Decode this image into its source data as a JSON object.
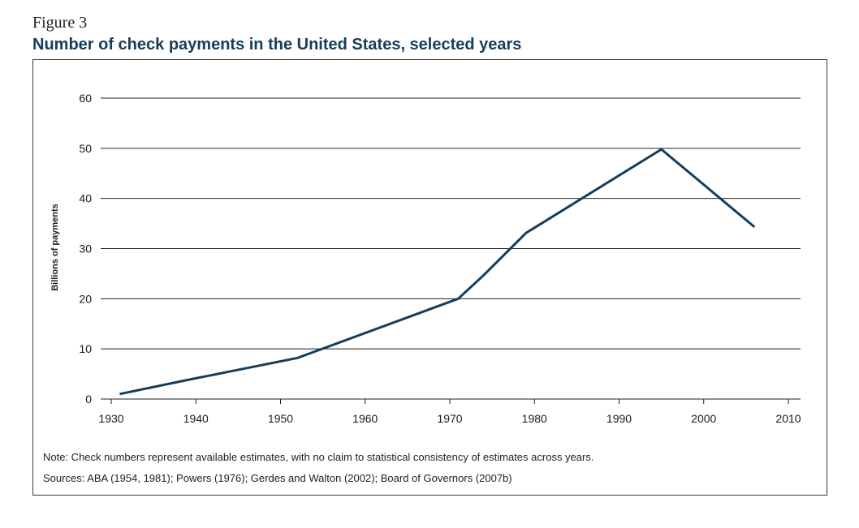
{
  "figure": {
    "label": "Figure 3",
    "title": "Number of check payments in the United States, selected years"
  },
  "notes": {
    "note": "Note: Check numbers represent available estimates, with no claim to statistical consistency of estimates across years.",
    "sources": "Sources: ABA (1954, 1981); Powers (1976); Gerdes and Walton (2002); Board of Governors (2007b)"
  },
  "colors": {
    "line": "#143d5c",
    "title": "#143d5c",
    "grid": "#222222"
  },
  "chart_data": {
    "type": "line",
    "title": "Number of check payments in the United States, selected years",
    "xlabel": "",
    "ylabel": "Billions of payments",
    "xlim": [
      1930,
      2010
    ],
    "ylim": [
      0,
      60
    ],
    "x_ticks": [
      1930,
      1940,
      1950,
      1960,
      1970,
      1980,
      1990,
      2000,
      2010
    ],
    "y_ticks": [
      0,
      10,
      20,
      30,
      40,
      50,
      60
    ],
    "grid": "horizontal",
    "series": [
      {
        "x": [
          1931,
          1939,
          1952,
          1971,
          1974,
          1979,
          1995,
          2006
        ],
        "y": [
          1.0,
          3.8,
          8.2,
          20.0,
          24.7,
          33.1,
          49.8,
          34.3
        ]
      }
    ]
  }
}
